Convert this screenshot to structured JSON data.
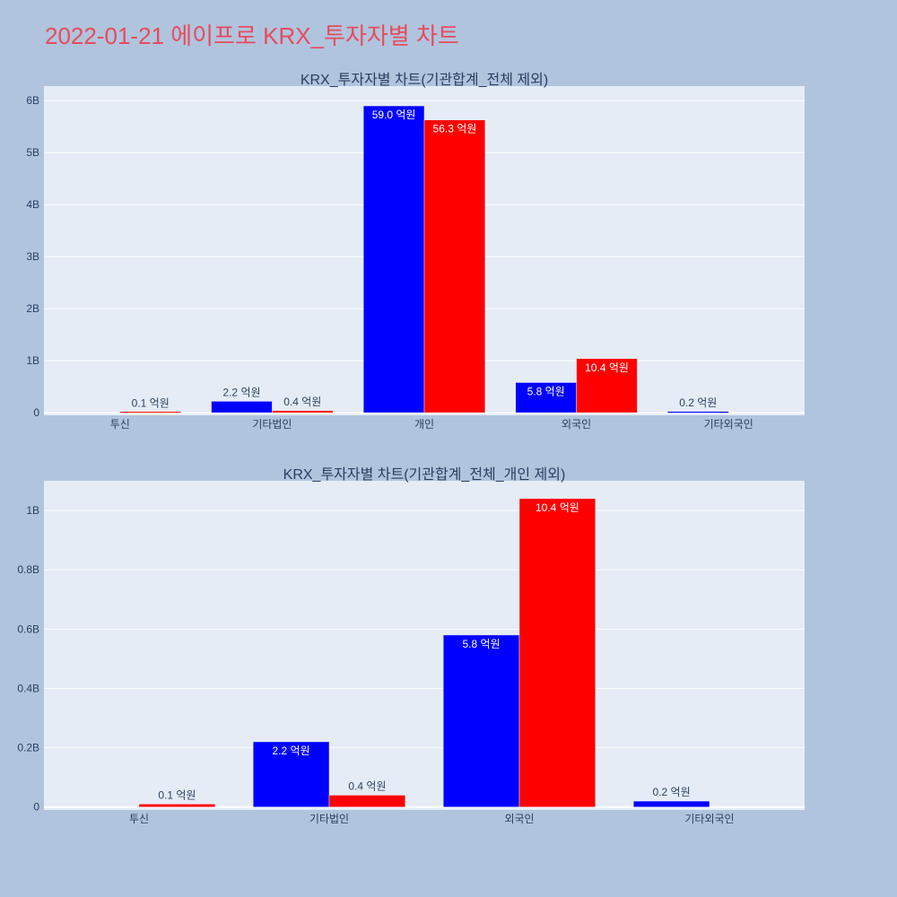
{
  "figure": {
    "title": "2022-01-21 에이프로 KRX_투자자별 차트",
    "title_color": "#e84c5c",
    "background": "#b0c4de",
    "plot_background": "#e5ecf6"
  },
  "chart_data": [
    {
      "type": "bar",
      "barmode": "group",
      "title": "KRX_투자자별 차트(기관합계_전체 제외)",
      "categories": [
        "투신",
        "기타법인",
        "개인",
        "외국인",
        "기타외국인"
      ],
      "series": [
        {
          "color": "#0000ff",
          "values": [
            null,
            220000000,
            5900000000,
            580000000,
            20000000
          ],
          "labels": [
            null,
            "2.2 억원",
            "59.0 억원",
            "5.8 억원",
            "0.2 억원"
          ]
        },
        {
          "color": "#ff0000",
          "values": [
            10000000,
            40000000,
            5630000000,
            1040000000,
            null
          ],
          "labels": [
            "0.1 억원",
            "0.4 억원",
            "56.3 억원",
            "10.4 억원",
            null
          ]
        }
      ],
      "y_ticks": [
        {
          "value": 0,
          "label": "0"
        },
        {
          "value": 1000000000,
          "label": "1B"
        },
        {
          "value": 2000000000,
          "label": "2B"
        },
        {
          "value": 3000000000,
          "label": "3B"
        },
        {
          "value": 4000000000,
          "label": "4B"
        },
        {
          "value": 5000000000,
          "label": "5B"
        },
        {
          "value": 6000000000,
          "label": "6B"
        }
      ],
      "ylim": [
        -50000000,
        6280000000
      ],
      "grid": true
    },
    {
      "type": "bar",
      "barmode": "group",
      "title": "KRX_투자자별 차트(기관합계_전체_개인 제외)",
      "categories": [
        "투신",
        "기타법인",
        "외국인",
        "기타외국인"
      ],
      "series": [
        {
          "color": "#0000ff",
          "values": [
            null,
            220000000,
            580000000,
            20000000
          ],
          "labels": [
            null,
            "2.2 억원",
            "5.8 억원",
            "0.2 억원"
          ]
        },
        {
          "color": "#ff0000",
          "values": [
            10000000,
            40000000,
            1040000000,
            null
          ],
          "labels": [
            "0.1 억원",
            "0.4 억원",
            "10.4 억원",
            null
          ]
        }
      ],
      "y_ticks": [
        {
          "value": 0,
          "label": "0"
        },
        {
          "value": 200000000,
          "label": "0.2B"
        },
        {
          "value": 400000000,
          "label": "0.4B"
        },
        {
          "value": 600000000,
          "label": "0.6B"
        },
        {
          "value": 800000000,
          "label": "0.8B"
        },
        {
          "value": 1000000000,
          "label": "1B"
        }
      ],
      "ylim": [
        -10000000,
        1100000000
      ],
      "grid": true
    }
  ]
}
